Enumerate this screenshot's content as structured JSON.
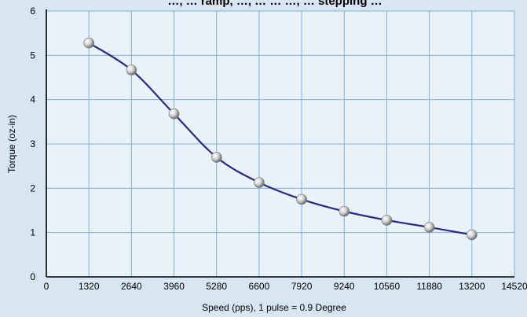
{
  "chart_data": {
    "type": "line",
    "title": "…, … ramp, …, … … …, … stepping …",
    "xlabel": "Speed (pps), 1 pulse = 0.9 Degree",
    "ylabel": "Torque (oz-in)",
    "x_ticks": [
      "0",
      "1320",
      "2640",
      "3960",
      "5280",
      "6600",
      "7920",
      "9240",
      "10560",
      "11880",
      "13200",
      "14520"
    ],
    "y_ticks": [
      "0",
      "1",
      "2",
      "3",
      "4",
      "5",
      "6"
    ],
    "xlim": [
      0,
      14520
    ],
    "ylim": [
      0,
      6
    ],
    "grid": true,
    "series": [
      {
        "x": [
          1320,
          2640,
          3960,
          5280,
          6600,
          7920,
          9240,
          10560,
          11880,
          13200
        ],
        "y": [
          5.28,
          4.67,
          3.68,
          2.7,
          2.13,
          1.75,
          1.48,
          1.28,
          1.12,
          0.95
        ]
      }
    ]
  },
  "colors": {
    "background": "#d6e6f3",
    "plot_area": "#e9f2fa",
    "grid": "#7fb0dc",
    "line": "#32297a",
    "marker": "#d9d9d9"
  }
}
